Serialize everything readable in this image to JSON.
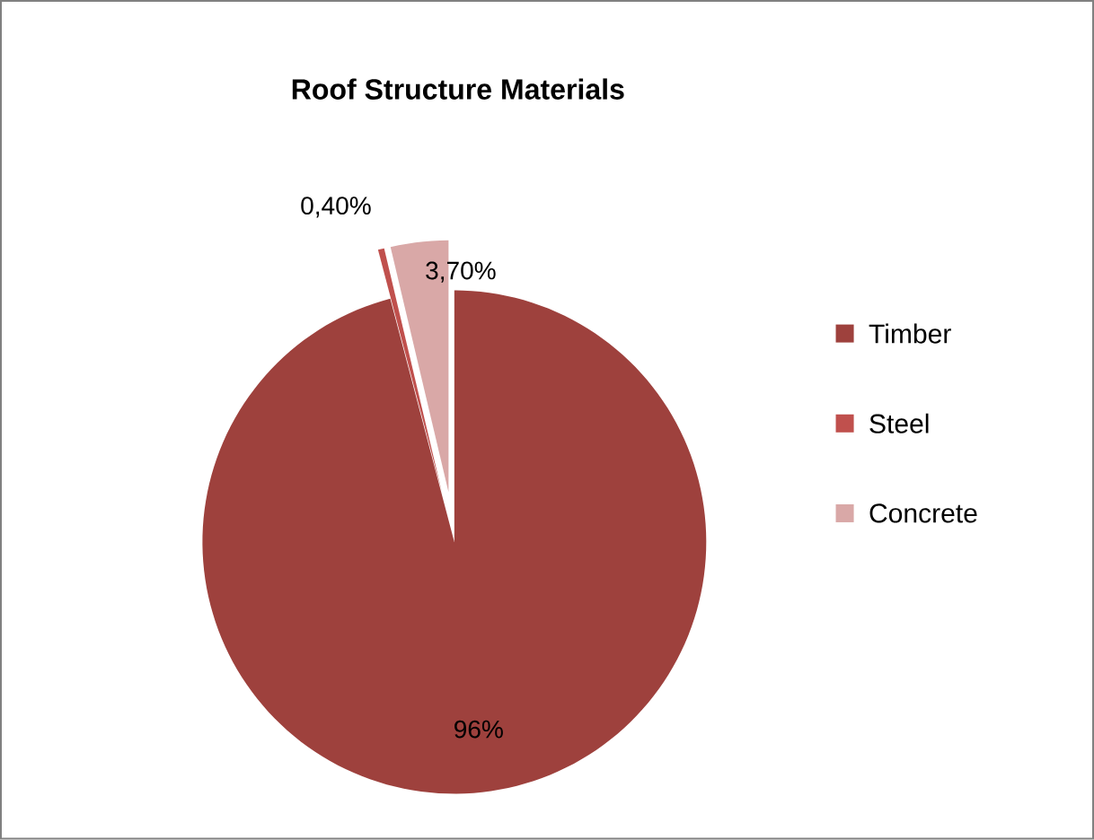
{
  "chart_data": {
    "type": "pie",
    "title": "Roof Structure Materials",
    "categories": [
      "Timber",
      "Steel",
      "Concrete"
    ],
    "values": [
      96,
      0.4,
      3.7
    ],
    "value_labels": [
      "96%",
      "0,40%",
      "3,70%"
    ],
    "colors": [
      "#9e413d",
      "#c0504d",
      "#d9a8a7"
    ],
    "legend": "right"
  }
}
